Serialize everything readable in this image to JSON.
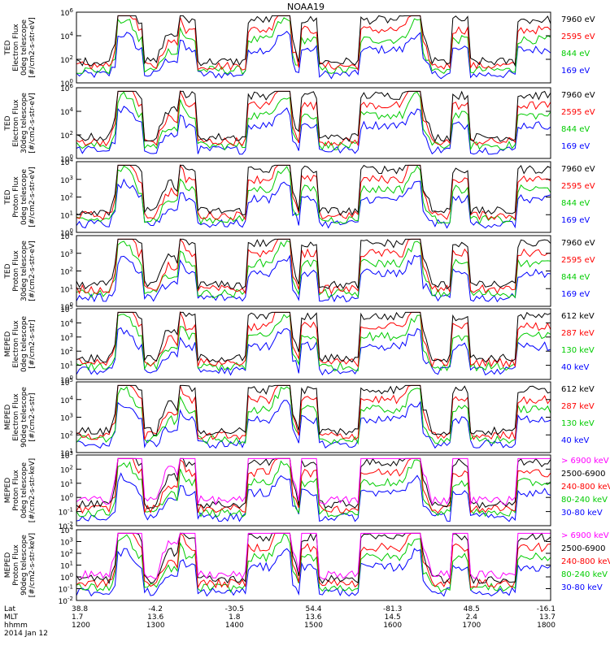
{
  "title": "NOAA19",
  "colors": {
    "black": "#000000",
    "red": "#ff0000",
    "green": "#00cc00",
    "blue": "#0000ff",
    "magenta": "#ff00ff",
    "axis": "#000000"
  },
  "chart_data": [
    {
      "type": "line",
      "scale": "log",
      "ylabel": [
        "TED",
        "Electron Flux",
        "0deg telescope",
        "[#/cm2-s-str-eV]"
      ],
      "ylim": [
        1,
        1000000
      ],
      "tick_exponents": [
        0,
        2,
        4,
        6
      ],
      "legend": [
        {
          "label": "7960 eV",
          "color": "#000000"
        },
        {
          "label": "2595 eV",
          "color": "#ff0000"
        },
        {
          "label": "844 eV",
          "color": "#00cc00"
        },
        {
          "label": "169 eV",
          "color": "#0000ff"
        }
      ]
    },
    {
      "type": "line",
      "scale": "log",
      "ylabel": [
        "TED",
        "Electron Flux",
        "30deg telescope",
        "[#/cm2-s-str-eV]"
      ],
      "ylim": [
        1,
        1000000
      ],
      "tick_exponents": [
        0,
        2,
        4,
        6
      ],
      "legend": [
        {
          "label": "7960 eV",
          "color": "#000000"
        },
        {
          "label": "2595 eV",
          "color": "#ff0000"
        },
        {
          "label": "844 eV",
          "color": "#00cc00"
        },
        {
          "label": "169 eV",
          "color": "#0000ff"
        }
      ]
    },
    {
      "type": "line",
      "scale": "log",
      "ylabel": [
        "TED",
        "Proton Flux",
        "0deg telescope",
        "[#/cm2-s-str-eV]"
      ],
      "ylim": [
        1,
        10000
      ],
      "tick_exponents": [
        0,
        1,
        2,
        3,
        4
      ],
      "legend": [
        {
          "label": "7960 eV",
          "color": "#000000"
        },
        {
          "label": "2595 eV",
          "color": "#ff0000"
        },
        {
          "label": "844 eV",
          "color": "#00cc00"
        },
        {
          "label": "169 eV",
          "color": "#0000ff"
        }
      ]
    },
    {
      "type": "line",
      "scale": "log",
      "ylabel": [
        "TED",
        "Proton Flux",
        "30deg telescope",
        "[#/cm2-s-str-eV]"
      ],
      "ylim": [
        1,
        10000
      ],
      "tick_exponents": [
        0,
        1,
        2,
        3,
        4
      ],
      "legend": [
        {
          "label": "7960 eV",
          "color": "#000000"
        },
        {
          "label": "2595 eV",
          "color": "#ff0000"
        },
        {
          "label": "844 eV",
          "color": "#00cc00"
        },
        {
          "label": "169 eV",
          "color": "#0000ff"
        }
      ]
    },
    {
      "type": "line",
      "scale": "log",
      "ylabel": [
        "MEPED",
        "Electron Flux",
        "0deg telescope",
        "[#/cm2-s-str]"
      ],
      "ylim": [
        1,
        100000
      ],
      "tick_exponents": [
        0,
        1,
        2,
        3,
        4,
        5
      ],
      "legend": [
        {
          "label": "612 keV",
          "color": "#000000"
        },
        {
          "label": "287 keV",
          "color": "#ff0000"
        },
        {
          "label": "130 keV",
          "color": "#00cc00"
        },
        {
          "label": "40 keV",
          "color": "#0000ff"
        }
      ]
    },
    {
      "type": "line",
      "scale": "log",
      "ylabel": [
        "MEPED",
        "Electron Flux",
        "90deg telescope",
        "[#/cm2-s-str]"
      ],
      "ylim": [
        10,
        100000
      ],
      "tick_exponents": [
        1,
        2,
        3,
        4,
        5
      ],
      "legend": [
        {
          "label": "612 keV",
          "color": "#000000"
        },
        {
          "label": "287 keV",
          "color": "#ff0000"
        },
        {
          "label": "130 keV",
          "color": "#00cc00"
        },
        {
          "label": "40 keV",
          "color": "#0000ff"
        }
      ]
    },
    {
      "type": "line",
      "scale": "log",
      "ylabel": [
        "MEPED",
        "Proton Flux",
        "0deg telescope",
        "[#/cm2-s-str-keV]"
      ],
      "ylim": [
        0.01,
        1000
      ],
      "tick_exponents": [
        -2,
        -1,
        0,
        1,
        2,
        3
      ],
      "legend": [
        {
          "label": "> 6900 keV",
          "color": "#ff00ff"
        },
        {
          "label": "2500-6900",
          "color": "#000000"
        },
        {
          "label": "240-800 keV",
          "color": "#ff0000"
        },
        {
          "label": "80-240 keV",
          "color": "#00cc00"
        },
        {
          "label": "30-80 keV",
          "color": "#0000ff"
        }
      ]
    },
    {
      "type": "line",
      "scale": "log",
      "ylabel": [
        "MEPED",
        "Proton Flux",
        "90deg telescope",
        "[#/cm2-s-str-keV]"
      ],
      "ylim": [
        0.01,
        10000
      ],
      "tick_exponents": [
        -2,
        -1,
        0,
        1,
        2,
        3,
        4
      ],
      "legend": [
        {
          "label": "> 6900 keV",
          "color": "#ff00ff"
        },
        {
          "label": "2500-6900",
          "color": "#000000"
        },
        {
          "label": "240-800 keV",
          "color": "#ff0000"
        },
        {
          "label": "80-240 keV",
          "color": "#00cc00"
        },
        {
          "label": "30-80 keV",
          "color": "#0000ff"
        }
      ]
    }
  ],
  "x_axis": {
    "row_labels": [
      "Lat",
      "MLT",
      "hhmm"
    ],
    "date": "2014 Jan 12",
    "ticks": [
      {
        "lat": "38.8",
        "mlt": "1.7",
        "hhmm": "1200"
      },
      {
        "lat": "-4.2",
        "mlt": "13.6",
        "hhmm": "1300"
      },
      {
        "lat": "-30.5",
        "mlt": "1.8",
        "hhmm": "1400"
      },
      {
        "lat": "54.4",
        "mlt": "13.6",
        "hhmm": "1500"
      },
      {
        "lat": "-81.3",
        "mlt": "14.5",
        "hhmm": "1600"
      },
      {
        "lat": "48.5",
        "mlt": "2.4",
        "hhmm": "1700"
      },
      {
        "lat": "-16.1",
        "mlt": "13.7",
        "hhmm": "1800"
      }
    ]
  }
}
